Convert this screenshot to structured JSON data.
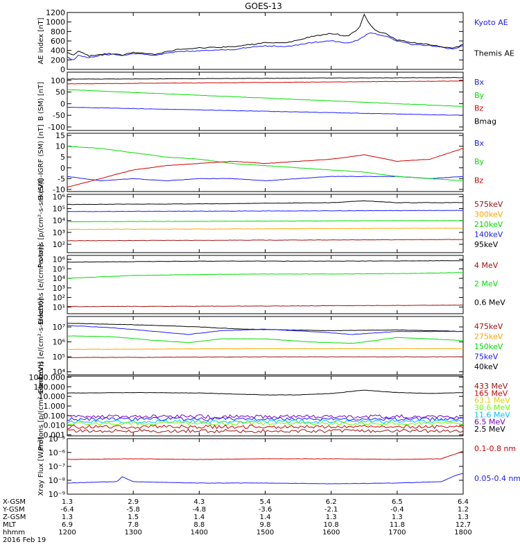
{
  "title": "GOES-13",
  "colors": {
    "blue": "#1a1aff",
    "black": "#000000",
    "red": "#d00000",
    "green": "#00dd00",
    "orange": "#ffa500",
    "cyan": "#00bfff",
    "darkred": "#a01010",
    "purple": "#7a00c8",
    "yellow": "#e0d000",
    "lime": "#66ff00"
  },
  "chart_data": [
    {
      "type": "line",
      "ylabel": "AE index [nT]",
      "ylim": [
        0,
        1200
      ],
      "yticks": [
        "0",
        "200",
        "400",
        "600",
        "800",
        "1000",
        "1200"
      ],
      "legend": [
        {
          "name": "Kyoto AE",
          "color": "blue"
        },
        {
          "name": "Themis AE",
          "color": "black"
        }
      ],
      "series": [
        {
          "name": "Kyoto AE",
          "color": "blue",
          "x": [
            0,
            5,
            10,
            20,
            30,
            40,
            50,
            60,
            80,
            100,
            120,
            150,
            180,
            200,
            220,
            240,
            255,
            265,
            275,
            290,
            300,
            315,
            330,
            340,
            350,
            360
          ],
          "y": [
            280,
            180,
            300,
            250,
            300,
            320,
            290,
            340,
            300,
            370,
            390,
            420,
            500,
            480,
            560,
            600,
            560,
            620,
            780,
            700,
            600,
            520,
            500,
            480,
            420,
            500
          ]
        },
        {
          "name": "Themis AE",
          "color": "black",
          "x": [
            0,
            5,
            10,
            20,
            30,
            40,
            50,
            60,
            80,
            100,
            120,
            150,
            180,
            200,
            220,
            240,
            255,
            265,
            270,
            275,
            280,
            290,
            300,
            315,
            330,
            340,
            350,
            360
          ],
          "y": [
            350,
            300,
            380,
            280,
            320,
            330,
            300,
            360,
            320,
            420,
            450,
            480,
            560,
            560,
            680,
            760,
            700,
            850,
            1150,
            950,
            820,
            750,
            620,
            560,
            520,
            480,
            440,
            520
          ]
        }
      ]
    },
    {
      "type": "line",
      "ylabel": "B (SM) [nT]",
      "ylim": [
        -115,
        135
      ],
      "yticks": [
        "-100",
        "-50",
        "0",
        "50",
        "100"
      ],
      "legend": [
        {
          "name": "Bx",
          "color": "blue"
        },
        {
          "name": "By",
          "color": "green"
        },
        {
          "name": "Bz",
          "color": "red"
        },
        {
          "name": "Bmag",
          "color": "black"
        }
      ],
      "series": [
        {
          "name": "Bx",
          "color": "blue",
          "x": [
            0,
            360
          ],
          "y": [
            -15,
            -50
          ]
        },
        {
          "name": "By",
          "color": "green",
          "x": [
            0,
            360
          ],
          "y": [
            60,
            -12
          ]
        },
        {
          "name": "Bz",
          "color": "red",
          "x": [
            0,
            360
          ],
          "y": [
            85,
            97
          ]
        },
        {
          "name": "Bmag",
          "color": "black",
          "x": [
            0,
            360
          ],
          "y": [
            105,
            112
          ]
        }
      ]
    },
    {
      "type": "line",
      "ylabel": "B (SM)-IGRF (SM) [nT]",
      "ylim": [
        -11,
        16
      ],
      "yticks": [
        "-10",
        "-5",
        "0",
        "5",
        "10",
        "15"
      ],
      "legend": [
        {
          "name": "Bx",
          "color": "blue"
        },
        {
          "name": "By",
          "color": "green"
        },
        {
          "name": "Bz",
          "color": "red"
        }
      ],
      "series": [
        {
          "name": "Bx",
          "color": "blue",
          "x": [
            0,
            30,
            60,
            90,
            120,
            150,
            180,
            210,
            240,
            270,
            300,
            330,
            360
          ],
          "y": [
            -4,
            -6,
            -5,
            -6,
            -5,
            -5,
            -6,
            -5,
            -4,
            -4,
            -4,
            -5,
            -4
          ]
        },
        {
          "name": "By",
          "color": "green",
          "x": [
            0,
            30,
            60,
            90,
            120,
            150,
            180,
            210,
            240,
            270,
            300,
            330,
            360
          ],
          "y": [
            10,
            9,
            7,
            5,
            4,
            2,
            1,
            0,
            -1,
            -2,
            -4,
            -5,
            -6
          ]
        },
        {
          "name": "Bz",
          "color": "red",
          "x": [
            0,
            30,
            60,
            90,
            120,
            150,
            180,
            210,
            240,
            270,
            300,
            330,
            360
          ],
          "y": [
            -9,
            -5,
            -1,
            1,
            2,
            3,
            2,
            3,
            4,
            6,
            3,
            4,
            9
          ]
        }
      ]
    },
    {
      "type": "line",
      "log": true,
      "ylabel": "Protons [p/(cm²-s-sr-keV)]",
      "ylim": [
        1.3,
        6.2
      ],
      "yticks": [
        "10²",
        "10³",
        "10⁴",
        "10⁵",
        "10⁶"
      ],
      "legend": [
        {
          "name": "575keV",
          "color": "darkred"
        },
        {
          "name": "300keV",
          "color": "orange"
        },
        {
          "name": "210keV",
          "color": "green"
        },
        {
          "name": "140keV",
          "color": "blue"
        },
        {
          "name": "95keV",
          "color": "black"
        }
      ],
      "series": [
        {
          "name": "575keV",
          "color": "black",
          "x": [
            0,
            120,
            240,
            270,
            300,
            360
          ],
          "y": [
            5.35,
            5.4,
            5.5,
            5.65,
            5.5,
            5.5
          ]
        },
        {
          "name": "300keV",
          "color": "blue",
          "x": [
            0,
            180,
            360
          ],
          "y": [
            4.75,
            4.8,
            4.85
          ]
        },
        {
          "name": "210keV",
          "color": "green",
          "x": [
            0,
            180,
            360
          ],
          "y": [
            3.9,
            3.95,
            4.0
          ]
        },
        {
          "name": "140keV",
          "color": "orange",
          "x": [
            0,
            180,
            360
          ],
          "y": [
            3.25,
            3.3,
            3.35
          ]
        },
        {
          "name": "95keV",
          "color": "darkred",
          "x": [
            0,
            180,
            360
          ],
          "y": [
            2.3,
            2.35,
            2.4
          ]
        }
      ]
    },
    {
      "type": "line",
      "log": true,
      "ylabel": "Electrons [e/(cm²-s-sr)]",
      "ylim": [
        0.3,
        6.4
      ],
      "yticks": [
        "10¹",
        "10²",
        "10³",
        "10⁴",
        "10⁵",
        "10⁶"
      ],
      "legend": [
        {
          "name": "4 MeV",
          "color": "darkred"
        },
        {
          "name": "2 MeV",
          "color": "green"
        },
        {
          "name": "0.6 MeV",
          "color": "black"
        }
      ],
      "series": [
        {
          "name": "0.6 MeV",
          "color": "black",
          "x": [
            0,
            120,
            240,
            360
          ],
          "y": [
            5.7,
            5.8,
            5.8,
            5.85
          ]
        },
        {
          "name": "2 MeV",
          "color": "green",
          "x": [
            0,
            60,
            120,
            180,
            240,
            300,
            360
          ],
          "y": [
            4.0,
            4.3,
            4.4,
            4.45,
            4.45,
            4.5,
            4.6
          ]
        },
        {
          "name": "4 MeV",
          "color": "darkred",
          "x": [
            0,
            180,
            360
          ],
          "y": [
            1.05,
            1.1,
            1.2
          ]
        }
      ]
    },
    {
      "type": "line",
      "log": true,
      "ylabel": "Electrons [e/(cm²-s-sr-keV)]",
      "ylim": [
        3.8,
        7.7
      ],
      "yticks": [
        "10⁴",
        "10⁵",
        "10⁶",
        "10⁷"
      ],
      "legend": [
        {
          "name": "475keV",
          "color": "darkred"
        },
        {
          "name": "275keV",
          "color": "orange"
        },
        {
          "name": "150keV",
          "color": "green"
        },
        {
          "name": "75keV",
          "color": "blue"
        },
        {
          "name": "40keV",
          "color": "black"
        }
      ],
      "series": [
        {
          "name": "40keV",
          "color": "black",
          "x": [
            0,
            60,
            120,
            160,
            200,
            240,
            300,
            360
          ],
          "y": [
            7.25,
            7.15,
            7.0,
            6.85,
            6.8,
            6.75,
            6.8,
            6.7
          ]
        },
        {
          "name": "75keV",
          "color": "blue",
          "x": [
            0,
            40,
            80,
            110,
            140,
            180,
            220,
            260,
            300,
            360
          ],
          "y": [
            7.1,
            6.95,
            6.7,
            6.5,
            6.75,
            6.85,
            6.7,
            6.5,
            6.7,
            6.7
          ]
        },
        {
          "name": "150keV",
          "color": "green",
          "x": [
            0,
            40,
            80,
            110,
            140,
            180,
            220,
            260,
            300,
            360
          ],
          "y": [
            6.4,
            6.35,
            6.1,
            5.95,
            6.2,
            6.2,
            6.0,
            5.9,
            6.3,
            6.1
          ]
        },
        {
          "name": "275keV",
          "color": "orange",
          "x": [
            0,
            180,
            360
          ],
          "y": [
            5.5,
            5.55,
            5.55
          ]
        },
        {
          "name": "475keV",
          "color": "darkred",
          "x": [
            0,
            180,
            360
          ],
          "y": [
            4.95,
            5.0,
            5.0
          ]
        }
      ]
    },
    {
      "type": "line",
      "log": true,
      "ylabel": "Protons [p/(cm²-s-sr-keV)]",
      "ylim": [
        -3.1,
        3.1
      ],
      "yticks": [
        "0.001",
        "0.010",
        "0.100",
        "1.000",
        "10.000",
        "100.000",
        "1000.000"
      ],
      "legend": [
        {
          "name": "433 MeV",
          "color": "darkred"
        },
        {
          "name": "165 MeV",
          "color": "red"
        },
        {
          "name": "63.1 MeV",
          "color": "yellow"
        },
        {
          "name": "30.6 MeV",
          "color": "lime"
        },
        {
          "name": "11.6 MeV",
          "color": "cyan"
        },
        {
          "name": "6.5 MeV",
          "color": "purple"
        },
        {
          "name": "2.5 MeV",
          "color": "black"
        }
      ],
      "series": [
        {
          "name": "2.5 MeV",
          "color": "black",
          "x": [
            0,
            60,
            120,
            180,
            210,
            240,
            270,
            300,
            330,
            360
          ],
          "y": [
            1.35,
            1.4,
            1.35,
            1.15,
            1.15,
            1.3,
            1.65,
            1.4,
            1.3,
            1.4
          ]
        },
        {
          "name": "6.5 MeV",
          "color": "purple",
          "x": [
            0,
            360
          ],
          "y": [
            -1.1,
            -1.1
          ]
        },
        {
          "name": "11.6 MeV",
          "color": "blue",
          "x": [
            0,
            360
          ],
          "y": [
            -1.35,
            -1.35
          ]
        },
        {
          "name": "30.6 MeV",
          "color": "cyan",
          "x": [
            0,
            360
          ],
          "y": [
            -1.6,
            -1.6
          ]
        },
        {
          "name": "63.1 MeV",
          "color": "lime",
          "x": [
            0,
            360
          ],
          "y": [
            -1.8,
            -1.8
          ]
        },
        {
          "name": "165 MeV",
          "color": "red",
          "x": [
            0,
            360
          ],
          "y": [
            -2.15,
            -2.15
          ]
        },
        {
          "name": "433 MeV",
          "color": "darkred",
          "x": [
            0,
            360
          ],
          "y": [
            -2.6,
            -2.6
          ]
        }
      ]
    },
    {
      "type": "line",
      "log": true,
      "ylabel": "Xray Flux [W/m²]",
      "ylim": [
        -9,
        -5
      ],
      "yticks": [
        "10⁻⁹",
        "10⁻⁸",
        "10⁻⁷",
        "10⁻⁶",
        "10⁻⁵"
      ],
      "legend": [
        {
          "name": "0.1-0.8 nm",
          "color": "red"
        },
        {
          "name": "0.05-0.4 nm",
          "color": "blue"
        }
      ],
      "series": [
        {
          "name": "0.1-0.8 nm",
          "color": "red",
          "x": [
            0,
            60,
            120,
            180,
            240,
            300,
            340,
            355,
            360
          ],
          "y": [
            -6.5,
            -6.45,
            -6.5,
            -6.45,
            -6.45,
            -6.5,
            -6.45,
            -6.05,
            -5.9
          ]
        },
        {
          "name": "0.05-0.4 nm",
          "color": "blue",
          "x": [
            0,
            20,
            45,
            50,
            60,
            120,
            180,
            240,
            300,
            340,
            355,
            360
          ],
          "y": [
            -8.2,
            -8.15,
            -8.1,
            -7.75,
            -8.1,
            -8.2,
            -8.2,
            -8.25,
            -8.2,
            -8.1,
            -7.6,
            -7.5
          ]
        }
      ]
    }
  ],
  "axis": {
    "row_labels": [
      "X-GSM",
      "Y-GSM",
      "Z-GSM",
      "MLT",
      "hhmm",
      "2016 Feb 19"
    ],
    "rows": [
      [
        "1.3",
        "2.9",
        "4.3",
        "5.4",
        "6.2",
        "6.5",
        "6.4"
      ],
      [
        "-6.4",
        "-5.8",
        "-4.8",
        "-3.6",
        "-2.1",
        "-0.4",
        "1.2"
      ],
      [
        "1.3",
        "1.5",
        "1.4",
        "1.4",
        "1.3",
        "1.3",
        "1.3"
      ],
      [
        "6.9",
        "7.8",
        "8.8",
        "9.8",
        "10.8",
        "11.8",
        "12.7"
      ],
      [
        "1200",
        "1300",
        "1400",
        "1500",
        "1600",
        "1700",
        "1800"
      ]
    ]
  }
}
